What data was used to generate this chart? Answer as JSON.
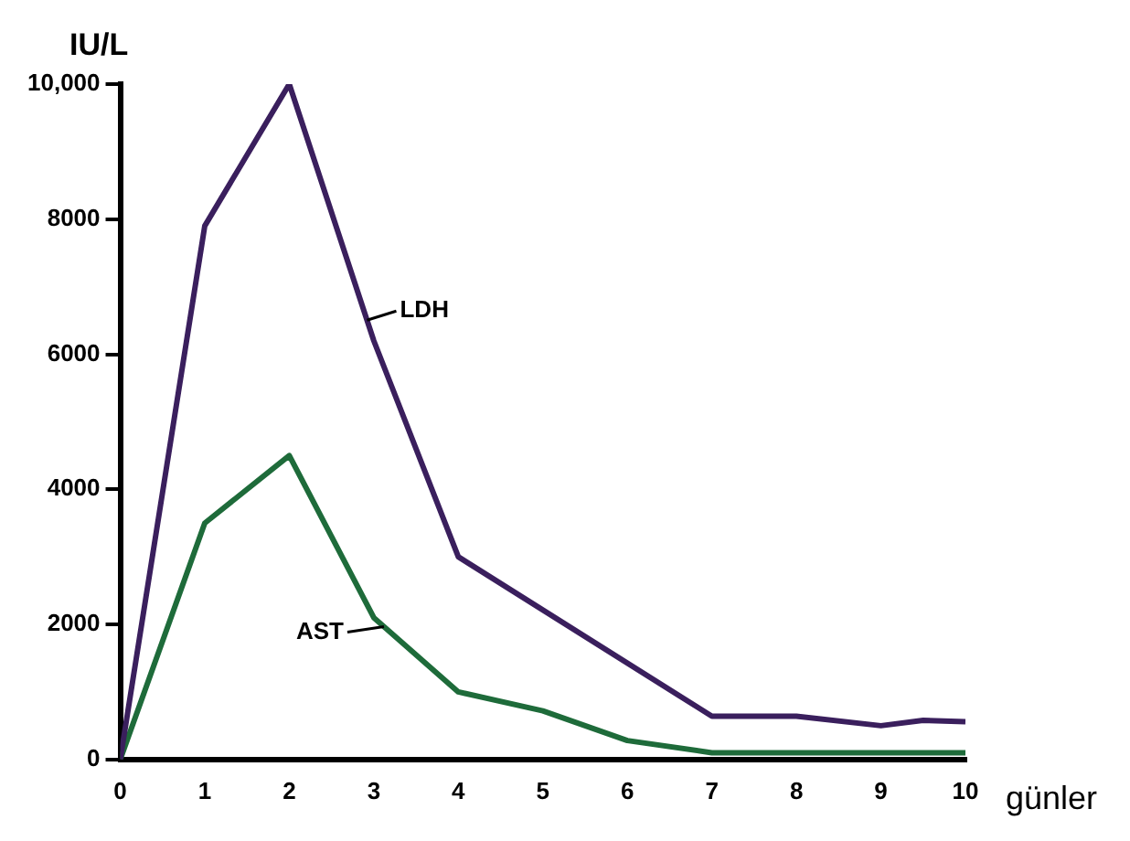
{
  "chart_data": {
    "type": "line",
    "ylabel": "IU/L",
    "xlabel": "günler",
    "series": [
      {
        "name": "LDH",
        "color": "#3a1f5d",
        "x": [
          0,
          1,
          2,
          3,
          4,
          7,
          8,
          9,
          9.5,
          10
        ],
        "values": [
          0,
          7900,
          10000,
          6200,
          3000,
          640,
          640,
          500,
          580,
          560
        ]
      },
      {
        "name": "AST",
        "color": "#1e6b3a",
        "x": [
          0,
          1,
          2,
          3,
          4,
          5,
          6,
          7,
          8,
          9,
          10
        ],
        "values": [
          0,
          3500,
          4500,
          2100,
          1000,
          720,
          280,
          100,
          100,
          100,
          100
        ]
      }
    ],
    "xlim": [
      0,
      10
    ],
    "xticks": [
      0,
      1,
      2,
      3,
      4,
      5,
      6,
      7,
      8,
      9,
      10
    ],
    "ylim": [
      0,
      10000
    ],
    "yticks": [
      0,
      2000,
      4000,
      6000,
      8000,
      {
        "value": 10000,
        "label": "10,000"
      }
    ],
    "grid": false,
    "legend": false,
    "marker": "none",
    "line_style": "solid"
  }
}
